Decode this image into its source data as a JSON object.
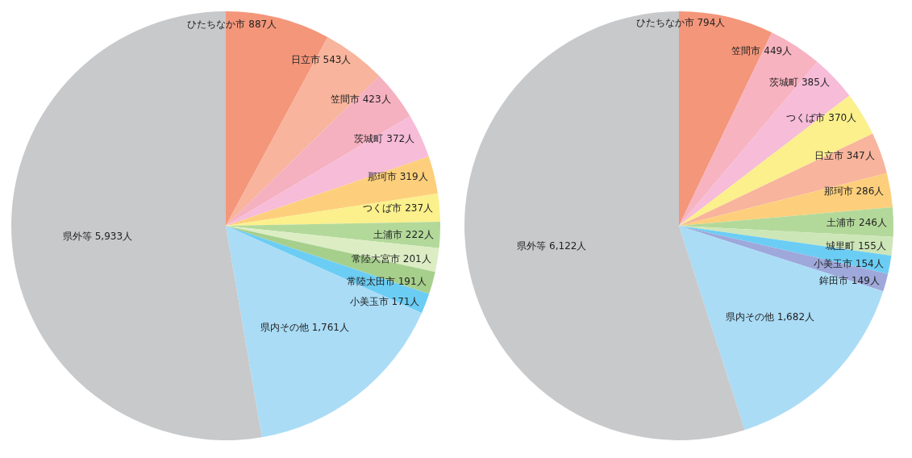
{
  "chart_data": [
    {
      "type": "pie",
      "legend": false,
      "categories": [
        "ひたちなか市",
        "日立市",
        "笠間市",
        "茨城町",
        "那珂市",
        "つくば市",
        "土浦市",
        "常陸大宮市",
        "常陸太田市",
        "小美玉市",
        "県内その他",
        "県外等"
      ],
      "values": [
        887,
        543,
        423,
        372,
        319,
        237,
        222,
        201,
        191,
        171,
        1761,
        5933
      ],
      "value_labels": [
        "887人",
        "543人",
        "423人",
        "372人",
        "319人",
        "237人",
        "222人",
        "201人",
        "191人",
        "171人",
        "1,761人",
        "5,933人"
      ],
      "colors": [
        "#f4967a",
        "#f8b49c",
        "#f5b1c0",
        "#f6bcd8",
        "#fdcf7c",
        "#fbf08c",
        "#b3d99a",
        "#dcedc4",
        "#a6cf8c",
        "#6ccdf4",
        "#aadcf6",
        "#c8c9cb"
      ]
    },
    {
      "type": "pie",
      "legend": false,
      "categories": [
        "ひたちなか市",
        "笠間市",
        "茨城町",
        "つくば市",
        "日立市",
        "那珂市",
        "土浦市",
        "城里町",
        "小美玉市",
        "鉾田市",
        "県内その他",
        "県外等"
      ],
      "values": [
        794,
        449,
        385,
        370,
        347,
        286,
        246,
        155,
        154,
        149,
        1682,
        6122
      ],
      "value_labels": [
        "794人",
        "449人",
        "385人",
        "370人",
        "347人",
        "286人",
        "246人",
        "155人",
        "154人",
        "149人",
        "1,682人",
        "6,122人"
      ],
      "colors": [
        "#f4967a",
        "#f7b3bf",
        "#f6bcd8",
        "#fbf08c",
        "#f8b49c",
        "#fdcf7c",
        "#b3d99a",
        "#cde6b8",
        "#6ccdf4",
        "#9ea8da",
        "#aadcf6",
        "#c8c9cb"
      ]
    }
  ]
}
